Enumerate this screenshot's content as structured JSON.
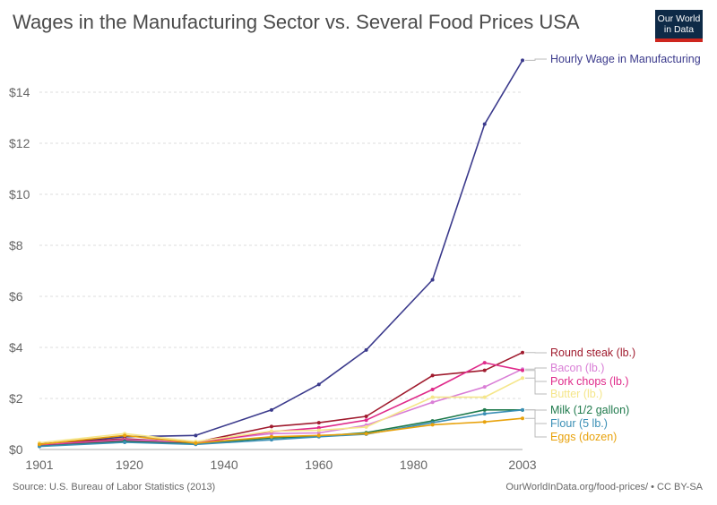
{
  "title": "Wages in the Manufacturing Sector vs. Several Food Prices USA",
  "logo": {
    "line1": "Our World",
    "line2": "in Data"
  },
  "source": "Source: U.S. Bureau of Labor Statistics (2013)",
  "credit": "OurWorldInData.org/food-prices/ • CC BY-SA",
  "chart_data": {
    "type": "line",
    "title": "Wages in the Manufacturing Sector vs. Several Food Prices USA",
    "xlim": [
      1901,
      2003
    ],
    "ylim": [
      0,
      15.3
    ],
    "x_ticks": [
      1901,
      1920,
      1940,
      1960,
      1980,
      2003
    ],
    "y_ticks": [
      {
        "value": 0,
        "label": "$0"
      },
      {
        "value": 2,
        "label": "$2"
      },
      {
        "value": 4,
        "label": "$4"
      },
      {
        "value": 6,
        "label": "$6"
      },
      {
        "value": 8,
        "label": "$8"
      },
      {
        "value": 10,
        "label": "$10"
      },
      {
        "value": 12,
        "label": "$12"
      },
      {
        "value": 14,
        "label": "$14"
      }
    ],
    "grid": true,
    "legend": "right-end labels",
    "series": [
      {
        "name": "Hourly Wage in Manufacturing",
        "color": "#3b3a8c",
        "x": [
          1901,
          1919,
          1934,
          1950,
          1960,
          1970,
          1984,
          1995,
          2003
        ],
        "y": [
          0.2,
          0.5,
          0.55,
          1.55,
          2.55,
          3.9,
          6.65,
          12.75,
          15.25
        ]
      },
      {
        "name": "Round steak (lb.)",
        "color": "#a01b2e",
        "x": [
          1901,
          1919,
          1934,
          1950,
          1960,
          1970,
          1984,
          1995,
          2003
        ],
        "y": [
          0.22,
          0.42,
          0.28,
          0.9,
          1.05,
          1.3,
          2.9,
          3.1,
          3.8
        ]
      },
      {
        "name": "Bacon (lb.)",
        "color": "#d97ed6",
        "x": [
          1901,
          1919,
          1934,
          1950,
          1960,
          1970,
          1984,
          1995,
          2003
        ],
        "y": [
          0.18,
          0.38,
          0.3,
          0.62,
          0.65,
          0.95,
          1.85,
          2.45,
          3.15
        ]
      },
      {
        "name": "Pork chops (lb.)",
        "color": "#df2a8a",
        "x": [
          1901,
          1919,
          1934,
          1950,
          1960,
          1970,
          1984,
          1995,
          2003
        ],
        "y": [
          0.16,
          0.35,
          0.24,
          0.7,
          0.85,
          1.15,
          2.35,
          3.4,
          3.1
        ]
      },
      {
        "name": "Butter (lb.)",
        "color": "#f5e68a",
        "x": [
          1901,
          1919,
          1934,
          1950,
          1960,
          1970,
          1984,
          1995,
          2003
        ],
        "y": [
          0.26,
          0.62,
          0.31,
          0.72,
          0.75,
          0.88,
          2.05,
          2.05,
          2.8
        ]
      },
      {
        "name": "Milk (1/2 gallon)",
        "color": "#1f7a4c",
        "x": [
          1901,
          1919,
          1934,
          1950,
          1960,
          1970,
          1984,
          1995,
          2003
        ],
        "y": [
          0.13,
          0.32,
          0.22,
          0.45,
          0.52,
          0.66,
          1.12,
          1.55,
          1.55
        ]
      },
      {
        "name": "Flour (5 lb.)",
        "color": "#3a8fb5",
        "x": [
          1901,
          1919,
          1934,
          1950,
          1960,
          1970,
          1984,
          1995,
          2003
        ],
        "y": [
          0.12,
          0.28,
          0.2,
          0.38,
          0.5,
          0.6,
          1.05,
          1.4,
          1.55
        ]
      },
      {
        "name": "Eggs (dozen)",
        "color": "#e8a20c",
        "x": [
          1901,
          1919,
          1934,
          1950,
          1960,
          1970,
          1984,
          1995,
          2003
        ],
        "y": [
          0.2,
          0.55,
          0.25,
          0.5,
          0.55,
          0.62,
          0.97,
          1.08,
          1.22
        ]
      }
    ]
  }
}
